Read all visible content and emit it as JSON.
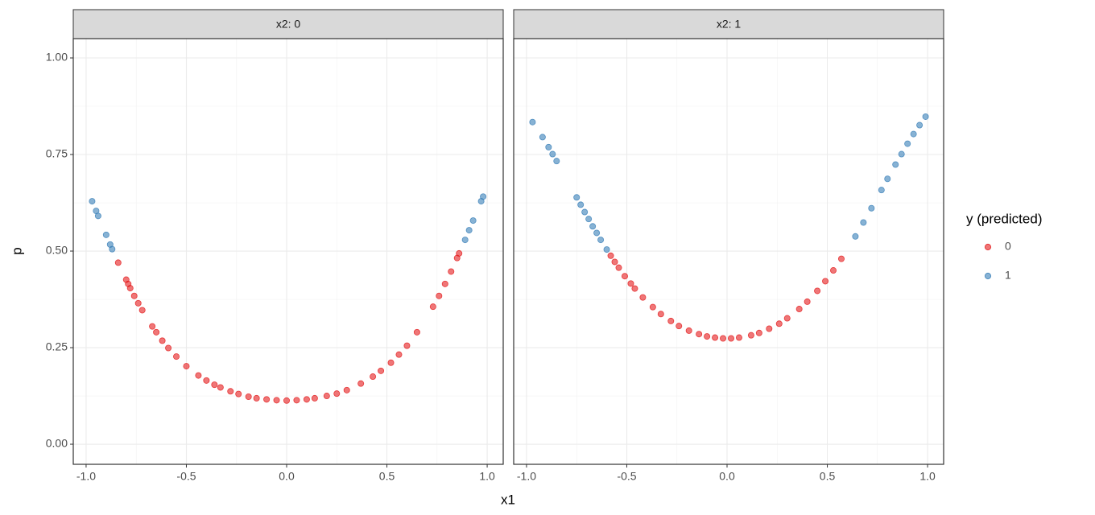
{
  "chart_data": {
    "type": "scatter",
    "x_label": "x1",
    "y_label": "p",
    "legend_title": "y (predicted)",
    "xlim": [
      -1.064,
      1.08
    ],
    "ylim": [
      -0.052,
      1.05
    ],
    "xticks": [
      {
        "value": -1,
        "label": "-1.0"
      },
      {
        "value": -0.5,
        "label": "-0.5"
      },
      {
        "value": 0,
        "label": "0.0"
      },
      {
        "value": 0.5,
        "label": "0.5"
      },
      {
        "value": 1,
        "label": "1.0"
      }
    ],
    "yticks": [
      {
        "value": 0,
        "label": "0.00"
      },
      {
        "value": 0.25,
        "label": "0.25"
      },
      {
        "value": 0.5,
        "label": "0.50"
      },
      {
        "value": 0.75,
        "label": "0.75"
      },
      {
        "value": 1,
        "label": "1.00"
      }
    ],
    "grid": true,
    "facets": [
      {
        "title": "x2: 0",
        "series": [
          {
            "name": "0",
            "color": "#e41a1c",
            "x": [
              -0.84,
              -0.8,
              -0.79,
              -0.78,
              -0.76,
              -0.74,
              -0.72,
              -0.67,
              -0.65,
              -0.62,
              -0.59,
              -0.55,
              -0.5,
              -0.44,
              -0.4,
              -0.36,
              -0.33,
              -0.28,
              -0.24,
              -0.19,
              -0.15,
              -0.1,
              -0.05,
              0,
              0.05,
              0.1,
              0.14,
              0.2,
              0.25,
              0.3,
              0.37,
              0.43,
              0.47,
              0.52,
              0.56,
              0.6,
              0.65,
              0.73,
              0.76,
              0.79,
              0.82,
              0.85,
              0.86
            ],
            "values": [
              0.47,
              0.426,
              0.415,
              0.404,
              0.384,
              0.365,
              0.347,
              0.305,
              0.29,
              0.268,
              0.249,
              0.227,
              0.202,
              0.178,
              0.165,
              0.154,
              0.147,
              0.137,
              0.13,
              0.123,
              0.119,
              0.116,
              0.114,
              0.113,
              0.114,
              0.116,
              0.119,
              0.125,
              0.131,
              0.14,
              0.157,
              0.175,
              0.19,
              0.211,
              0.232,
              0.255,
              0.29,
              0.356,
              0.384,
              0.415,
              0.447,
              0.482,
              0.494
            ]
          },
          {
            "name": "1",
            "color": "#377eb8",
            "x": [
              -0.97,
              -0.95,
              -0.94,
              -0.9,
              -0.88,
              -0.87,
              0.89,
              0.91,
              0.93,
              0.97,
              0.98
            ],
            "values": [
              0.629,
              0.604,
              0.591,
              0.542,
              0.517,
              0.505,
              0.529,
              0.554,
              0.579,
              0.629,
              0.641
            ]
          }
        ]
      },
      {
        "title": "x2: 1",
        "series": [
          {
            "name": "0",
            "color": "#e41a1c",
            "x": [
              -0.58,
              -0.56,
              -0.54,
              -0.51,
              -0.48,
              -0.46,
              -0.42,
              -0.37,
              -0.33,
              -0.28,
              -0.24,
              -0.19,
              -0.14,
              -0.1,
              -0.06,
              -0.02,
              0.02,
              0.06,
              0.12,
              0.16,
              0.21,
              0.26,
              0.3,
              0.36,
              0.4,
              0.45,
              0.49,
              0.53,
              0.57
            ],
            "values": [
              0.488,
              0.472,
              0.457,
              0.435,
              0.416,
              0.403,
              0.38,
              0.355,
              0.337,
              0.319,
              0.306,
              0.294,
              0.285,
              0.279,
              0.276,
              0.274,
              0.274,
              0.276,
              0.282,
              0.288,
              0.299,
              0.312,
              0.326,
              0.35,
              0.369,
              0.397,
              0.422,
              0.45,
              0.48
            ]
          },
          {
            "name": "1",
            "color": "#377eb8",
            "x": [
              -0.97,
              -0.92,
              -0.89,
              -0.87,
              -0.85,
              -0.75,
              -0.73,
              -0.71,
              -0.69,
              -0.67,
              -0.65,
              -0.63,
              -0.6,
              0.64,
              0.68,
              0.72,
              0.77,
              0.8,
              0.84,
              0.87,
              0.9,
              0.93,
              0.96,
              0.99
            ],
            "values": [
              0.834,
              0.795,
              0.769,
              0.751,
              0.733,
              0.639,
              0.62,
              0.601,
              0.583,
              0.564,
              0.547,
              0.529,
              0.504,
              0.538,
              0.574,
              0.611,
              0.658,
              0.687,
              0.724,
              0.751,
              0.778,
              0.803,
              0.826,
              0.848
            ]
          }
        ]
      }
    ]
  }
}
